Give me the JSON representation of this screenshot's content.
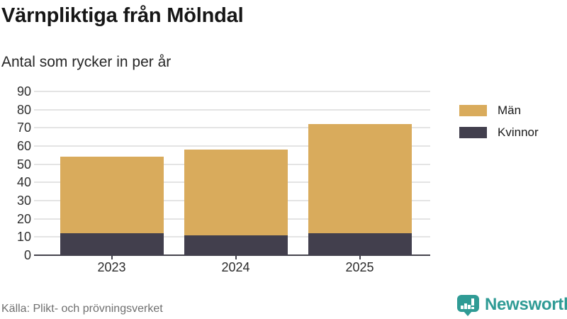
{
  "header": {
    "title": "Värnpliktiga från Mölndal",
    "subtitle": "Antal som rycker in per år"
  },
  "chart_data": {
    "type": "bar",
    "stacked": true,
    "title": "Värnpliktiga från Mölndal",
    "subtitle": "Antal som rycker in per år",
    "categories": [
      "2023",
      "2024",
      "2025"
    ],
    "series": [
      {
        "name": "Kvinnor",
        "color": "#423f4d",
        "values": [
          12,
          11,
          12
        ]
      },
      {
        "name": "Män",
        "color": "#d9ab5c",
        "values": [
          42,
          47,
          60
        ]
      }
    ],
    "totals": [
      54,
      58,
      72
    ],
    "ylim": [
      0,
      90
    ],
    "ytick_step": 10,
    "grid": true,
    "legend_position": "right",
    "legend_order": [
      "Män",
      "Kvinnor"
    ],
    "source": "Källa: Plikt- och prövningsverket"
  },
  "footer": {
    "source": "Källa: Plikt- och prövningsverket",
    "brand_name": "Newsworthy"
  },
  "colors": {
    "men": "#d9ab5c",
    "women": "#423f4d",
    "brand_teal": "#2f9b95",
    "gridline": "#e4e4e4",
    "axis": "#45444e"
  }
}
